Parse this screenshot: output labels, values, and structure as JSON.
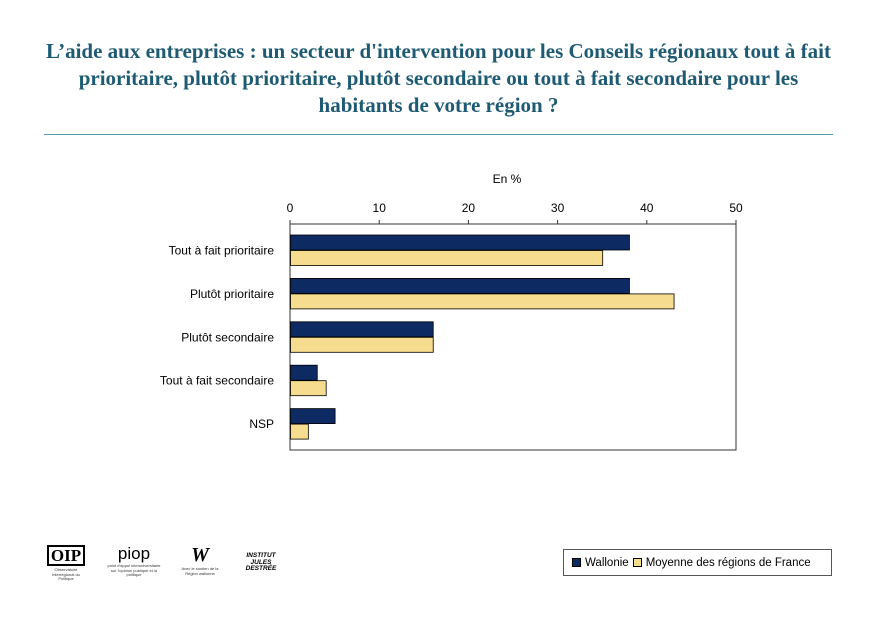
{
  "title": "L’aide aux entreprises : un secteur d'intervention pour les Conseils régionaux tout à fait prioritaire, plutôt prioritaire, plutôt secondaire ou tout à fait secondaire pour les habitants de votre région ?",
  "colors": {
    "title": "#1e5b73",
    "wallonie": "#0e2a63",
    "france": "#f5dc8e",
    "rule": "#5a9aa8"
  },
  "chart_data": {
    "type": "bar",
    "orientation": "horizontal",
    "unit_label": "En %",
    "xlim": [
      0,
      50
    ],
    "ticks": [
      0,
      10,
      20,
      30,
      40,
      50
    ],
    "categories": [
      "Tout à fait prioritaire",
      "Plutôt prioritaire",
      "Plutôt secondaire",
      "Tout à fait secondaire",
      "NSP"
    ],
    "series": [
      {
        "name": "Wallonie",
        "values": [
          38,
          38,
          16,
          3,
          5
        ],
        "color": "#0e2a63"
      },
      {
        "name": "Moyenne des régions de France",
        "values": [
          35,
          43,
          16,
          4,
          2
        ],
        "color": "#f5dc8e"
      }
    ],
    "grid": false,
    "legend_position": "bottom-right"
  },
  "logos": [
    {
      "name": "oip-logo",
      "mark": "OIP",
      "caption": "Observatoire Interrégional du Politique"
    },
    {
      "name": "piop-logo",
      "mark": "piop",
      "caption": "point d'appui interuniversitaire sur l'opinion publique et la politique"
    },
    {
      "name": "region-wallonne-logo",
      "mark": "W",
      "caption": "Avec le soutien de la Région wallonne"
    },
    {
      "name": "institut-destree-logo",
      "mark": "INSTITUT JULES DESTRÉE",
      "caption": ""
    }
  ]
}
